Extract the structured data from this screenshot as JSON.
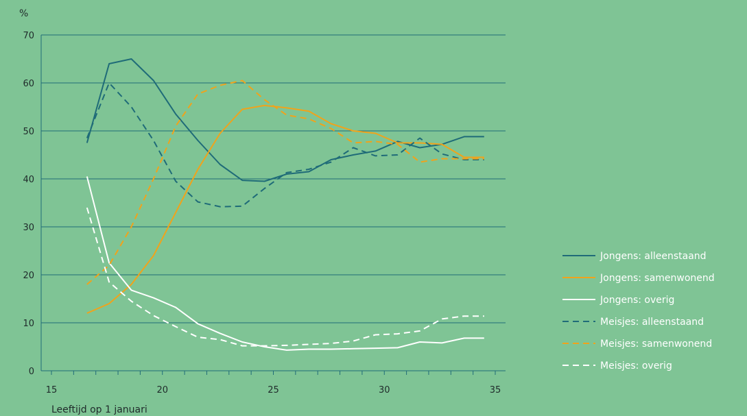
{
  "chart_data": {
    "type": "line",
    "ylabel": "%",
    "xlabel": "Leeftijd op 1 januari",
    "xlim": [
      14.5,
      35.3
    ],
    "ylim": [
      0,
      70
    ],
    "xticks": [
      15,
      20,
      25,
      30,
      35
    ],
    "yticks": [
      0,
      10,
      20,
      30,
      40,
      50,
      60,
      70
    ],
    "x": [
      16.6,
      17.6,
      18.6,
      19.6,
      20.6,
      21.6,
      22.6,
      23.6,
      24.6,
      25.6,
      26.6,
      27.6,
      28.6,
      29.6,
      30.6,
      31.6,
      32.6,
      33.6,
      34.5
    ],
    "grid": "horizontal",
    "legend_position": "right",
    "series": [
      {
        "name": "Jongens: alleenstaand",
        "color": "#1f6b78",
        "dash": "solid",
        "values": [
          47.5,
          64,
          65,
          60.5,
          53.5,
          48,
          43,
          39.7,
          39.5,
          41,
          41.5,
          44,
          45,
          45.8,
          47.8,
          46.5,
          47.2,
          48.8,
          48.8
        ]
      },
      {
        "name": "Jongens: samenwonend",
        "color": "#f0a31b",
        "dash": "solid",
        "values": [
          12,
          14,
          18,
          24,
          33,
          42,
          49.5,
          54.5,
          55.3,
          54.8,
          54.1,
          51.5,
          50,
          49.5,
          47.5,
          47.5,
          47.2,
          44.5,
          44.5
        ]
      },
      {
        "name": "Jongens: overig",
        "color": "#ffffff",
        "dash": "solid",
        "values": [
          40.5,
          22.5,
          16.8,
          15.2,
          13.2,
          9.8,
          7.8,
          6,
          5,
          4.3,
          4.5,
          4.5,
          4.6,
          4.7,
          4.8,
          6,
          5.8,
          6.8,
          6.8
        ]
      },
      {
        "name": "Meisjes: alleenstaand",
        "color": "#1f6b78",
        "dash": "dashed",
        "values": [
          48.5,
          60,
          55,
          48,
          39.5,
          35.2,
          34.2,
          34.3,
          38,
          41.3,
          42,
          43.5,
          46.5,
          44.8,
          45,
          48.5,
          45.2,
          44,
          44
        ]
      },
      {
        "name": "Meisjes: samenwonend",
        "color": "#f0a31b",
        "dash": "dashed",
        "values": [
          18,
          22,
          30,
          40,
          51,
          57.7,
          59.5,
          60.5,
          56.5,
          53.3,
          52.5,
          50.5,
          47.5,
          47.8,
          47.2,
          43.5,
          44.2,
          44.2,
          44.2
        ]
      },
      {
        "name": "Meisjes: overig",
        "color": "#ffffff",
        "dash": "dashed",
        "values": [
          34,
          18.5,
          14.5,
          11.5,
          9.2,
          7,
          6.5,
          5.2,
          5.2,
          5.3,
          5.5,
          5.7,
          6.2,
          7.5,
          7.7,
          8.3,
          10.8,
          11.4,
          11.4
        ]
      }
    ]
  }
}
